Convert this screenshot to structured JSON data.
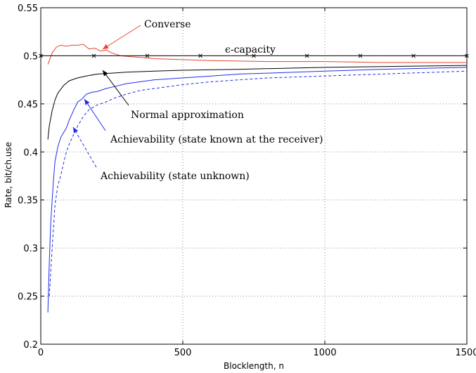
{
  "chart_data": {
    "type": "line",
    "xlabel": "Blocklength, n",
    "ylabel": "Rate, bit/ch.use",
    "xlim": [
      0,
      1500
    ],
    "ylim": [
      0.2,
      0.55
    ],
    "xticks": [
      0,
      500,
      1000,
      1500
    ],
    "xtick_labels": [
      "0",
      "500",
      "1000",
      "1500"
    ],
    "yticks": [
      0.2,
      0.25,
      0.3,
      0.35,
      0.4,
      0.45,
      0.5,
      0.55
    ],
    "ytick_labels": [
      "0.2",
      "0.25",
      "0.3",
      "0.35",
      "0.4",
      "0.45",
      "0.5",
      "0.55"
    ],
    "grid": true,
    "colors": {
      "converse": "#e8442c",
      "capacity": "#000000",
      "normal": "#000000",
      "achievability": "#1f2fe8"
    },
    "series": [
      {
        "key": "converse",
        "style": "solid",
        "x": [
          25,
          40,
          55,
          70,
          90,
          110,
          130,
          150,
          170,
          190,
          210,
          230,
          250,
          280,
          320,
          400,
          500,
          600,
          800,
          1000,
          1200,
          1500
        ],
        "y": [
          0.491,
          0.503,
          0.509,
          0.511,
          0.51,
          0.511,
          0.511,
          0.512,
          0.507,
          0.508,
          0.505,
          0.506,
          0.503,
          0.5,
          0.499,
          0.497,
          0.496,
          0.495,
          0.494,
          0.494,
          0.493,
          0.493
        ]
      },
      {
        "key": "capacity",
        "style": "solid-markers",
        "x": [
          0,
          1500
        ],
        "y": [
          0.5,
          0.5
        ],
        "marker_x": [
          0,
          187,
          375,
          562,
          750,
          937,
          1125,
          1312,
          1500
        ]
      },
      {
        "key": "normal",
        "style": "solid",
        "x": [
          25,
          30,
          40,
          50,
          60,
          80,
          100,
          130,
          160,
          200,
          250,
          300,
          400,
          500,
          700,
          1000,
          1250,
          1500
        ],
        "y": [
          0.413,
          0.427,
          0.443,
          0.454,
          0.461,
          0.469,
          0.474,
          0.477,
          0.479,
          0.481,
          0.482,
          0.483,
          0.484,
          0.485,
          0.486,
          0.488,
          0.489,
          0.49
        ]
      },
      {
        "key": "achievability_known",
        "style": "solid",
        "x": [
          25,
          30,
          35,
          40,
          45,
          50,
          60,
          70,
          80,
          90,
          100,
          115,
          130,
          145,
          160,
          180,
          200,
          230,
          260,
          300,
          350,
          400,
          500,
          600,
          700,
          800,
          1000,
          1200,
          1500
        ],
        "y": [
          0.233,
          0.285,
          0.325,
          0.35,
          0.372,
          0.39,
          0.405,
          0.415,
          0.42,
          0.425,
          0.433,
          0.443,
          0.452,
          0.455,
          0.46,
          0.462,
          0.463,
          0.466,
          0.468,
          0.471,
          0.473,
          0.475,
          0.477,
          0.479,
          0.481,
          0.482,
          0.484,
          0.486,
          0.488
        ]
      },
      {
        "key": "achievability_unknown",
        "style": "dashed",
        "x": [
          30,
          40,
          50,
          60,
          70,
          80,
          90,
          100,
          115,
          130,
          150,
          170,
          200,
          230,
          260,
          300,
          350,
          400,
          500,
          600,
          700,
          800,
          1000,
          1200,
          1500
        ],
        "y": [
          0.25,
          0.3,
          0.345,
          0.365,
          0.375,
          0.388,
          0.4,
          0.408,
          0.418,
          0.427,
          0.437,
          0.444,
          0.449,
          0.452,
          0.456,
          0.46,
          0.464,
          0.466,
          0.47,
          0.473,
          0.475,
          0.477,
          0.479,
          0.481,
          0.484
        ]
      }
    ],
    "annotations": [
      {
        "text": "Converse"
      },
      {
        "text": "ϵ-capacity"
      },
      {
        "text": "Normal approximation"
      },
      {
        "text": "Achievability (state known at the receiver)"
      },
      {
        "text": "Achievability (state unknown)"
      }
    ]
  }
}
